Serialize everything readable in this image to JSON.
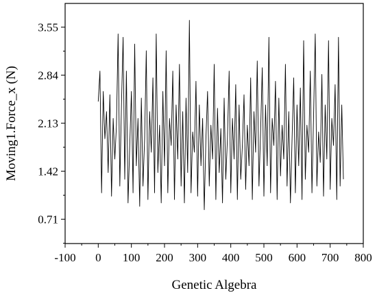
{
  "chart_data": {
    "type": "line",
    "title": "",
    "xlabel": "Genetic Algebra",
    "ylabel": "Moving1.Force_x (N)",
    "xlim": [
      -100,
      800
    ],
    "ylim": [
      0.35,
      3.9
    ],
    "xticks": [
      -100,
      0,
      100,
      200,
      300,
      400,
      500,
      600,
      700,
      800
    ],
    "xtick_labels": [
      "-100",
      "0",
      "100",
      "200",
      "300",
      "400",
      "500",
      "600",
      "700",
      "800"
    ],
    "yticks": [
      0.71,
      1.42,
      2.13,
      2.84,
      3.55
    ],
    "ytick_labels": [
      "0.71",
      "1.42",
      "2.13",
      "2.84",
      "3.55"
    ],
    "grid": false,
    "legend": "none",
    "series": [
      {
        "x": [
          0,
          5,
          10,
          15,
          20,
          25,
          30,
          35,
          40,
          45,
          50,
          55,
          60,
          65,
          70,
          75,
          80,
          85,
          90,
          95,
          100,
          105,
          110,
          115,
          120,
          125,
          130,
          135,
          140,
          145,
          150,
          155,
          160,
          165,
          170,
          175,
          180,
          185,
          190,
          195,
          200,
          205,
          210,
          215,
          220,
          225,
          230,
          235,
          240,
          245,
          250,
          255,
          260,
          265,
          270,
          275,
          280,
          285,
          290,
          295,
          300,
          305,
          310,
          315,
          320,
          325,
          330,
          335,
          340,
          345,
          350,
          355,
          360,
          365,
          370,
          375,
          380,
          385,
          390,
          395,
          400,
          405,
          410,
          415,
          420,
          425,
          430,
          435,
          440,
          445,
          450,
          455,
          460,
          465,
          470,
          475,
          480,
          485,
          490,
          495,
          500,
          505,
          510,
          515,
          520,
          525,
          530,
          535,
          540,
          545,
          550,
          555,
          560,
          565,
          570,
          575,
          580,
          585,
          590,
          595,
          600,
          605,
          610,
          615,
          620,
          625,
          630,
          635,
          640,
          645,
          650,
          655,
          660,
          665,
          670,
          675,
          680,
          685,
          690,
          695,
          700,
          705,
          710,
          715,
          720,
          725,
          730,
          735,
          740
        ],
        "y": [
          2.45,
          2.9,
          1.1,
          2.6,
          1.9,
          2.3,
          1.4,
          2.55,
          1.05,
          2.2,
          1.6,
          2.1,
          3.45,
          1.2,
          2.4,
          3.4,
          1.3,
          2.9,
          0.95,
          1.8,
          2.6,
          1.1,
          3.3,
          1.5,
          2.2,
          0.9,
          2.5,
          1.2,
          1.9,
          3.2,
          1.0,
          2.3,
          1.7,
          2.8,
          1.1,
          3.45,
          1.4,
          2.1,
          0.95,
          2.6,
          1.5,
          3.2,
          1.1,
          2.2,
          1.8,
          2.9,
          1.0,
          2.4,
          1.6,
          3.0,
          1.2,
          2.3,
          0.95,
          2.5,
          1.4,
          3.65,
          1.1,
          2.0,
          1.7,
          2.75,
          1.05,
          2.4,
          1.5,
          2.2,
          0.85,
          1.9,
          2.6,
          1.2,
          2.1,
          1.6,
          3.0,
          1.0,
          2.35,
          1.4,
          2.05,
          0.95,
          2.5,
          1.3,
          1.9,
          2.9,
          1.1,
          2.2,
          1.6,
          2.7,
          1.0,
          2.4,
          1.3,
          1.8,
          2.55,
          1.15,
          2.1,
          1.5,
          2.8,
          1.0,
          2.3,
          1.7,
          3.05,
          1.2,
          2.0,
          2.95,
          1.05,
          2.4,
          1.5,
          3.4,
          1.1,
          2.2,
          1.8,
          2.75,
          1.0,
          2.5,
          1.35,
          2.1,
          1.6,
          3.0,
          1.2,
          2.3,
          0.95,
          1.9,
          2.8,
          1.1,
          2.4,
          1.5,
          2.65,
          1.0,
          3.35,
          1.3,
          2.1,
          1.7,
          2.9,
          1.1,
          2.25,
          3.45,
          1.2,
          2.0,
          1.55,
          2.85,
          1.05,
          2.4,
          1.6,
          3.35,
          1.15,
          2.2,
          1.8,
          2.7,
          1.0,
          3.4,
          1.2,
          2.4,
          1.3
        ]
      }
    ]
  }
}
